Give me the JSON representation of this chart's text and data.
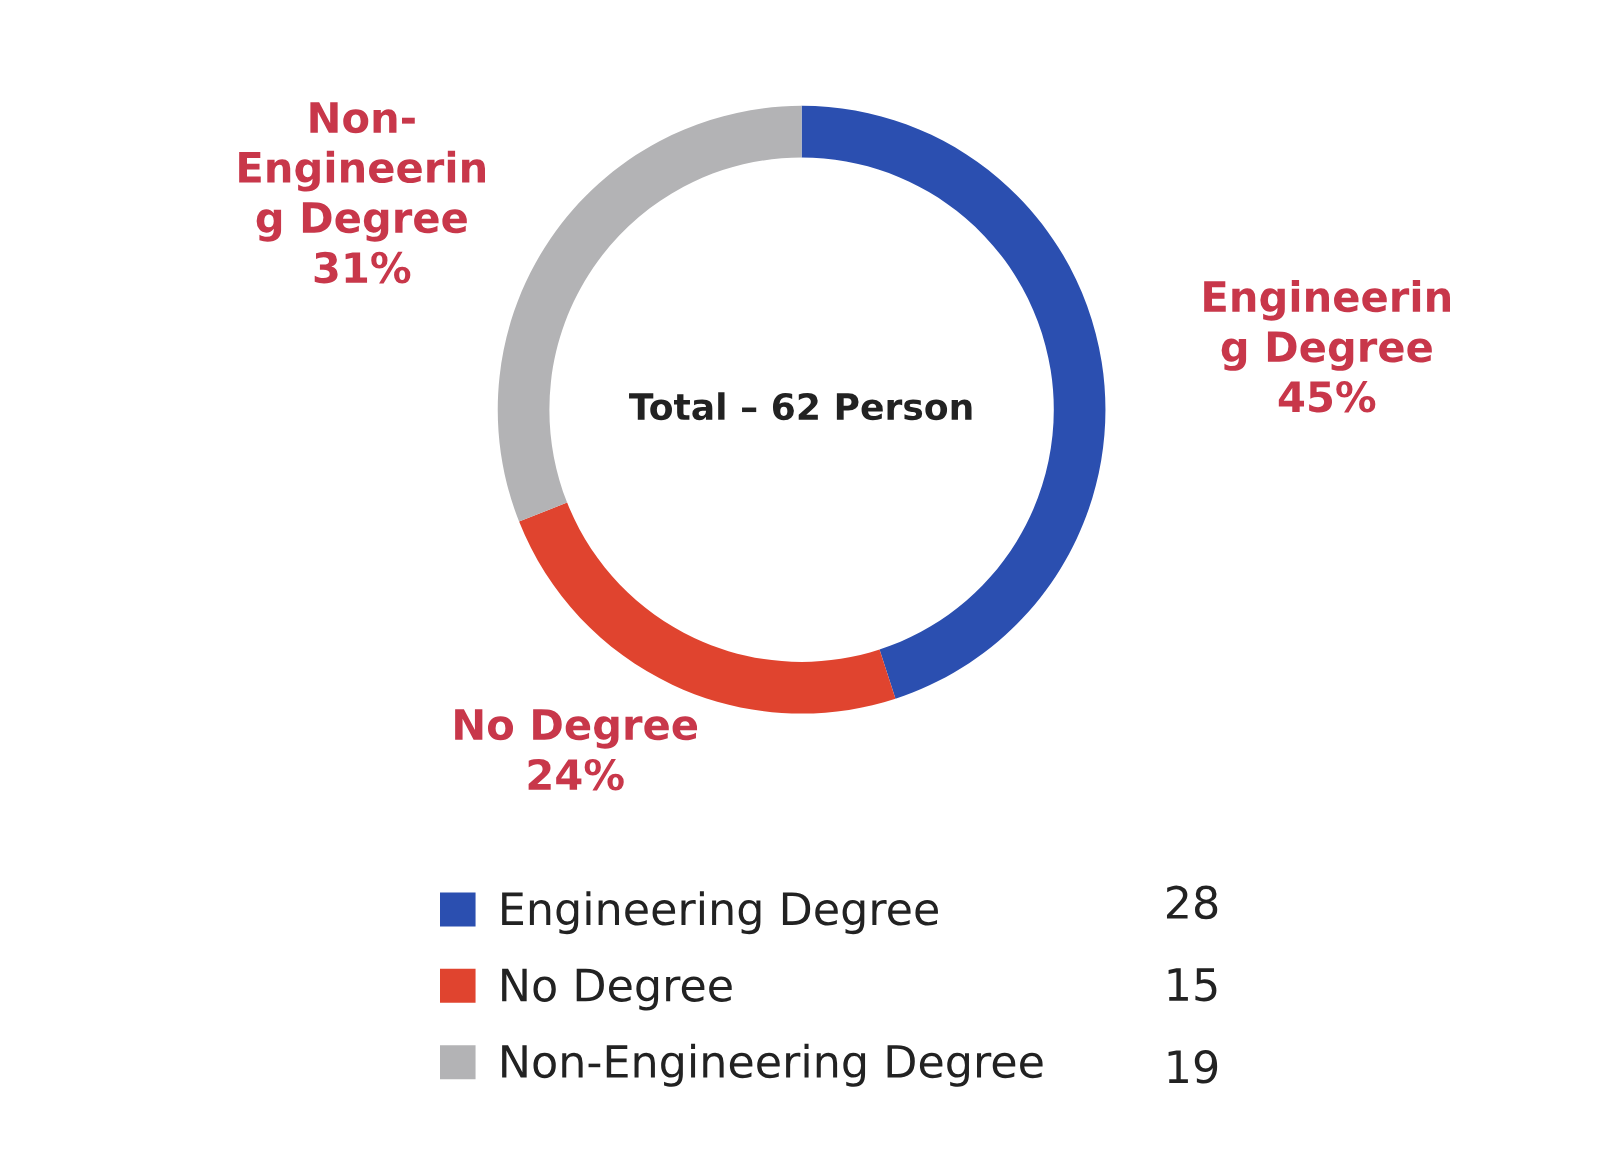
{
  "chart_data": {
    "type": "donut",
    "categories": [
      "Engineering Degree",
      "No Degree",
      "Non-Engineering Degree"
    ],
    "values": [
      45,
      24,
      31
    ],
    "colors": [
      "#2b4fb0",
      "#e0442f",
      "#b3b3b5"
    ],
    "value_labels": [
      "Engineerin\ng Degree\n45%",
      "No Degree\n24%",
      "Non-\nEngineerin\ng Degree\n31%"
    ],
    "annotations": [
      "Total – 62 Person",
      "28",
      "15",
      "19"
    ],
    "legend": "bottom"
  }
}
